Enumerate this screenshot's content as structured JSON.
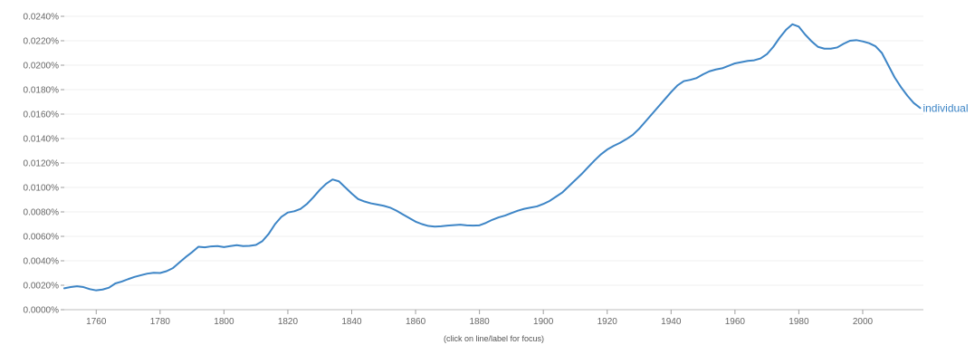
{
  "chart_data": {
    "type": "line",
    "xlim": [
      1750,
      2019
    ],
    "ylim": [
      0,
      0.024
    ],
    "y_unit": "%",
    "x_ticks": [
      1760,
      1780,
      1800,
      1820,
      1840,
      1860,
      1880,
      1900,
      1920,
      1940,
      1960,
      1980,
      2000
    ],
    "x_tick_labels": [
      "1760",
      "1780",
      "1800",
      "1820",
      "1840",
      "1860",
      "1880",
      "1900",
      "1920",
      "1940",
      "1960",
      "1980",
      "2000"
    ],
    "y_ticks": [
      0,
      0.002,
      0.004,
      0.006,
      0.008,
      0.01,
      0.012,
      0.014,
      0.016,
      0.018,
      0.02,
      0.022,
      0.024
    ],
    "y_tick_labels": [
      "0.0000%",
      "0.0020%",
      "0.0040%",
      "0.0060%",
      "0.0080%",
      "0.0100%",
      "0.0120%",
      "0.0140%",
      "0.0160%",
      "0.0180%",
      "0.0200%",
      "0.0220%",
      "0.0240%"
    ],
    "grid": true,
    "color": "#3d85c6",
    "series": [
      {
        "name": "individual",
        "x": [
          1750,
          1752,
          1754,
          1756,
          1758,
          1760,
          1762,
          1764,
          1766,
          1768,
          1770,
          1772,
          1774,
          1776,
          1778,
          1780,
          1782,
          1784,
          1786,
          1788,
          1790,
          1792,
          1794,
          1796,
          1798,
          1800,
          1802,
          1804,
          1806,
          1808,
          1810,
          1812,
          1814,
          1816,
          1818,
          1820,
          1822,
          1824,
          1826,
          1828,
          1830,
          1832,
          1834,
          1836,
          1838,
          1840,
          1842,
          1844,
          1846,
          1848,
          1850,
          1852,
          1854,
          1856,
          1858,
          1860,
          1862,
          1864,
          1866,
          1868,
          1870,
          1872,
          1874,
          1876,
          1878,
          1880,
          1882,
          1884,
          1886,
          1888,
          1890,
          1892,
          1894,
          1896,
          1898,
          1900,
          1902,
          1904,
          1906,
          1908,
          1910,
          1912,
          1914,
          1916,
          1918,
          1920,
          1922,
          1924,
          1926,
          1928,
          1930,
          1932,
          1934,
          1936,
          1938,
          1940,
          1942,
          1944,
          1946,
          1948,
          1950,
          1952,
          1954,
          1956,
          1958,
          1960,
          1962,
          1964,
          1966,
          1968,
          1970,
          1972,
          1974,
          1976,
          1978,
          1980,
          1982,
          1984,
          1986,
          1988,
          1990,
          1992,
          1994,
          1996,
          1998,
          2000,
          2002,
          2004,
          2006,
          2008,
          2010,
          2012,
          2014,
          2016,
          2018
        ],
        "y": [
          0.00175,
          0.00185,
          0.00192,
          0.00185,
          0.00168,
          0.00158,
          0.00165,
          0.0018,
          0.00215,
          0.0023,
          0.0025,
          0.00268,
          0.00282,
          0.00295,
          0.00302,
          0.003,
          0.00315,
          0.0034,
          0.00385,
          0.0043,
          0.0047,
          0.00515,
          0.0051,
          0.00518,
          0.0052,
          0.00512,
          0.0052,
          0.00528,
          0.0052,
          0.00522,
          0.0053,
          0.0056,
          0.0062,
          0.007,
          0.0076,
          0.00795,
          0.00805,
          0.00825,
          0.00865,
          0.0092,
          0.0098,
          0.0103,
          0.01065,
          0.0105,
          0.01,
          0.0095,
          0.00905,
          0.00885,
          0.0087,
          0.0086,
          0.0085,
          0.00835,
          0.0081,
          0.0078,
          0.0075,
          0.0072,
          0.007,
          0.00685,
          0.0068,
          0.00682,
          0.00688,
          0.00692,
          0.00695,
          0.0069,
          0.00688,
          0.0069,
          0.0071,
          0.00735,
          0.00755,
          0.0077,
          0.0079,
          0.0081,
          0.00825,
          0.00835,
          0.00845,
          0.00865,
          0.0089,
          0.00925,
          0.0096,
          0.0101,
          0.0106,
          0.0111,
          0.01165,
          0.0122,
          0.0127,
          0.0131,
          0.0134,
          0.01365,
          0.01395,
          0.0143,
          0.0148,
          0.0154,
          0.016,
          0.0166,
          0.0172,
          0.0178,
          0.01835,
          0.0187,
          0.0188,
          0.01895,
          0.01925,
          0.0195,
          0.01965,
          0.01975,
          0.01995,
          0.02015,
          0.02025,
          0.02035,
          0.0204,
          0.02055,
          0.0209,
          0.0215,
          0.02225,
          0.0229,
          0.02335,
          0.02315,
          0.0225,
          0.02195,
          0.0215,
          0.02135,
          0.02135,
          0.02145,
          0.02175,
          0.022,
          0.02205,
          0.02195,
          0.0218,
          0.02155,
          0.021,
          0.02,
          0.019,
          0.0182,
          0.0175,
          0.0169,
          0.0165
        ]
      }
    ],
    "footer_note": "(click on line/label for focus)"
  }
}
